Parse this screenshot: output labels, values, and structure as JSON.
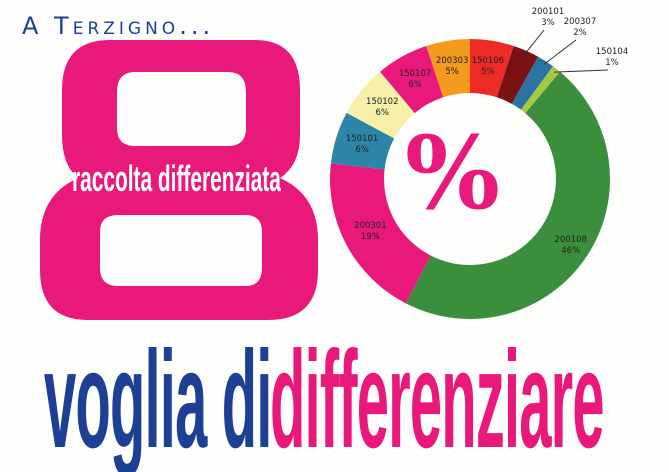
{
  "title": "A Terzigno...",
  "big_number_text": "raccolta differenziata",
  "center_symbol": "%",
  "slogan": {
    "part1": "voglia di",
    "part2": "differenziare"
  },
  "colors": {
    "pink": "#e8197a",
    "blue": "#1d3f94"
  },
  "chart_data": {
    "type": "pie",
    "style": "donut",
    "direction": "clockwise",
    "slices": [
      {
        "code": "200108",
        "label": "200108",
        "pct_label": "46%",
        "value": 46,
        "color": "#3b8f3c"
      },
      {
        "code": "200301",
        "label": "200301",
        "pct_label": "19%",
        "value": 19,
        "color": "#e8197a"
      },
      {
        "code": "150101",
        "label": "150101",
        "pct_label": "6%",
        "value": 6,
        "color": "#2b86a8"
      },
      {
        "code": "150102",
        "label": "150102",
        "pct_label": "6%",
        "value": 6,
        "color": "#f6f0a8"
      },
      {
        "code": "150107",
        "label": "150107",
        "pct_label": "6%",
        "value": 6,
        "color": "#e8197a"
      },
      {
        "code": "200303",
        "label": "200303",
        "pct_label": "5%",
        "value": 5,
        "color": "#f49a1e"
      },
      {
        "code": "150106",
        "label": "150106",
        "pct_label": "5%",
        "value": 5,
        "color": "#ee2a24"
      },
      {
        "code": "200101",
        "label": "200101",
        "pct_label": "3%",
        "value": 3,
        "color": "#7a1114"
      },
      {
        "code": "200307",
        "label": "200307",
        "pct_label": "2%",
        "value": 2,
        "color": "#2b73a0"
      },
      {
        "code": "150104",
        "label": "150104",
        "pct_label": "1%",
        "value": 1,
        "color": "#a6c843"
      }
    ]
  }
}
